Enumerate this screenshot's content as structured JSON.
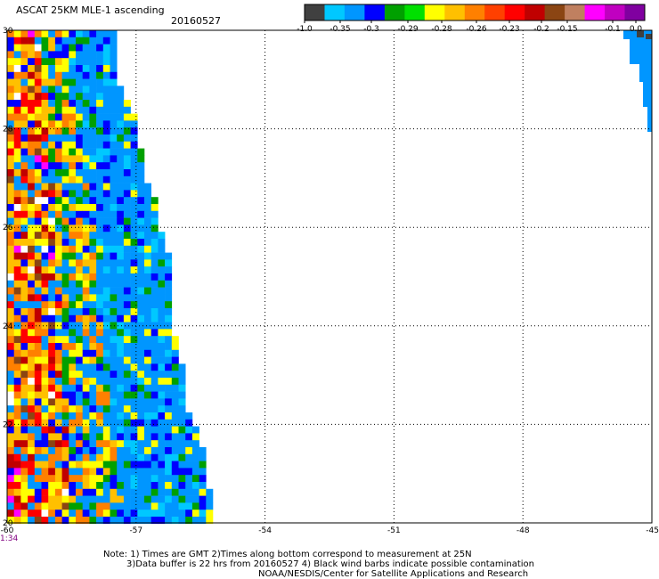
{
  "header": {
    "title": "ASCAT 25KM MLE-1 ascending",
    "date": "20160527"
  },
  "colorbar": {
    "labels": [
      "-1.0",
      "-0.35",
      "-0.3",
      "-0.29",
      "-0.28",
      "-0.26",
      "-0.23",
      "-0.2",
      "-0.15",
      "-0.1",
      "0.0"
    ],
    "colors": [
      "#404040",
      "#00c8ff",
      "#0096ff",
      "#0000ff",
      "#00a000",
      "#00e000",
      "#ffff00",
      "#ffc000",
      "#ff8000",
      "#ff4000",
      "#ff0000",
      "#c00000",
      "#8b4513",
      "#c08060",
      "#ff00ff",
      "#c000c0",
      "#8000a0"
    ]
  },
  "axes": {
    "lon_ticks": [
      "-60",
      "-57",
      "-54",
      "-51",
      "-48",
      "-45"
    ],
    "lat_ticks": [
      "30",
      "28",
      "26",
      "24",
      "22",
      "20"
    ],
    "lon_range": [
      -60,
      -45
    ],
    "lat_range": [
      20,
      30
    ]
  },
  "swath": {
    "time_label": "1:34",
    "east_edge_lon": [
      [
        30.0,
        -57.5
      ],
      [
        29.0,
        -57.5
      ],
      [
        28.4,
        -57.1
      ],
      [
        27.8,
        -57.0
      ],
      [
        27.0,
        -56.8
      ],
      [
        26.6,
        -56.6
      ],
      [
        26.0,
        -56.5
      ],
      [
        25.4,
        -56.3
      ],
      [
        24.8,
        -56.3
      ],
      [
        24.0,
        -56.2
      ],
      [
        23.2,
        -56.0
      ],
      [
        22.4,
        -55.9
      ],
      [
        21.6,
        -55.5
      ],
      [
        20.8,
        -55.4
      ],
      [
        20.0,
        -55.2
      ]
    ],
    "palette": [
      "#0096ff",
      "#00c8ff",
      "#0000ff",
      "#00a000",
      "#00e000",
      "#ffff00",
      "#ffc000",
      "#ff8000",
      "#ff4000",
      "#ff0000",
      "#c00000",
      "#8b4513",
      "#ff00ff",
      "#404040",
      "#ffffff"
    ]
  },
  "corner_fragment": {
    "note": ""
  },
  "footer": {
    "line1": "Note: 1) Times are GMT 2)Times along bottom correspond to measurement at 25N",
    "line2": "3)Data buffer is 22 hrs from 20160527 4) Black wind barbs indicate possible contamination",
    "line3": "NOAA/NESDIS/Center for Satellite Applications and Research"
  }
}
